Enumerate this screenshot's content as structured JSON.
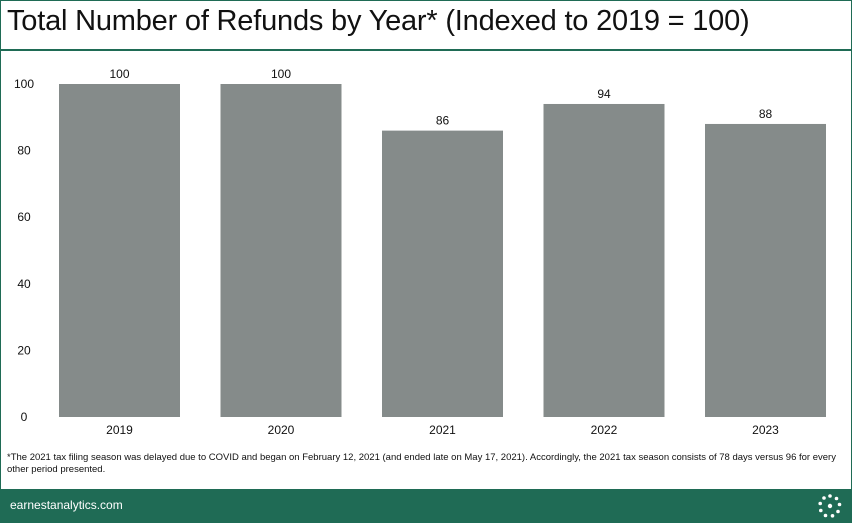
{
  "header": {
    "title": "Total Number of Refunds by Year* (Indexed to 2019 = 100)"
  },
  "chart_data": {
    "type": "bar",
    "categories": [
      "2019",
      "2020",
      "2021",
      "2022",
      "2023"
    ],
    "values": [
      100,
      100,
      86,
      94,
      88
    ],
    "data_labels": [
      "100",
      "100",
      "86",
      "94",
      "88"
    ],
    "y_ticks": [
      "0",
      "20",
      "40",
      "60",
      "80",
      "100"
    ],
    "ylim": [
      0,
      100
    ],
    "grid": false,
    "bar_color": "#858b8a"
  },
  "footnote": {
    "text": "*The 2021 tax filing season was delayed due to COVID and began on February 12, 2021 (and ended late on May 17, 2021). Accordingly, the 2021 tax season consists of 78 days versus 96 for every other period presented."
  },
  "footer": {
    "site": "earnestanalytics.com",
    "logo_icon": "earnest-dots-logo-icon",
    "brand_color": "#1f6b55"
  }
}
